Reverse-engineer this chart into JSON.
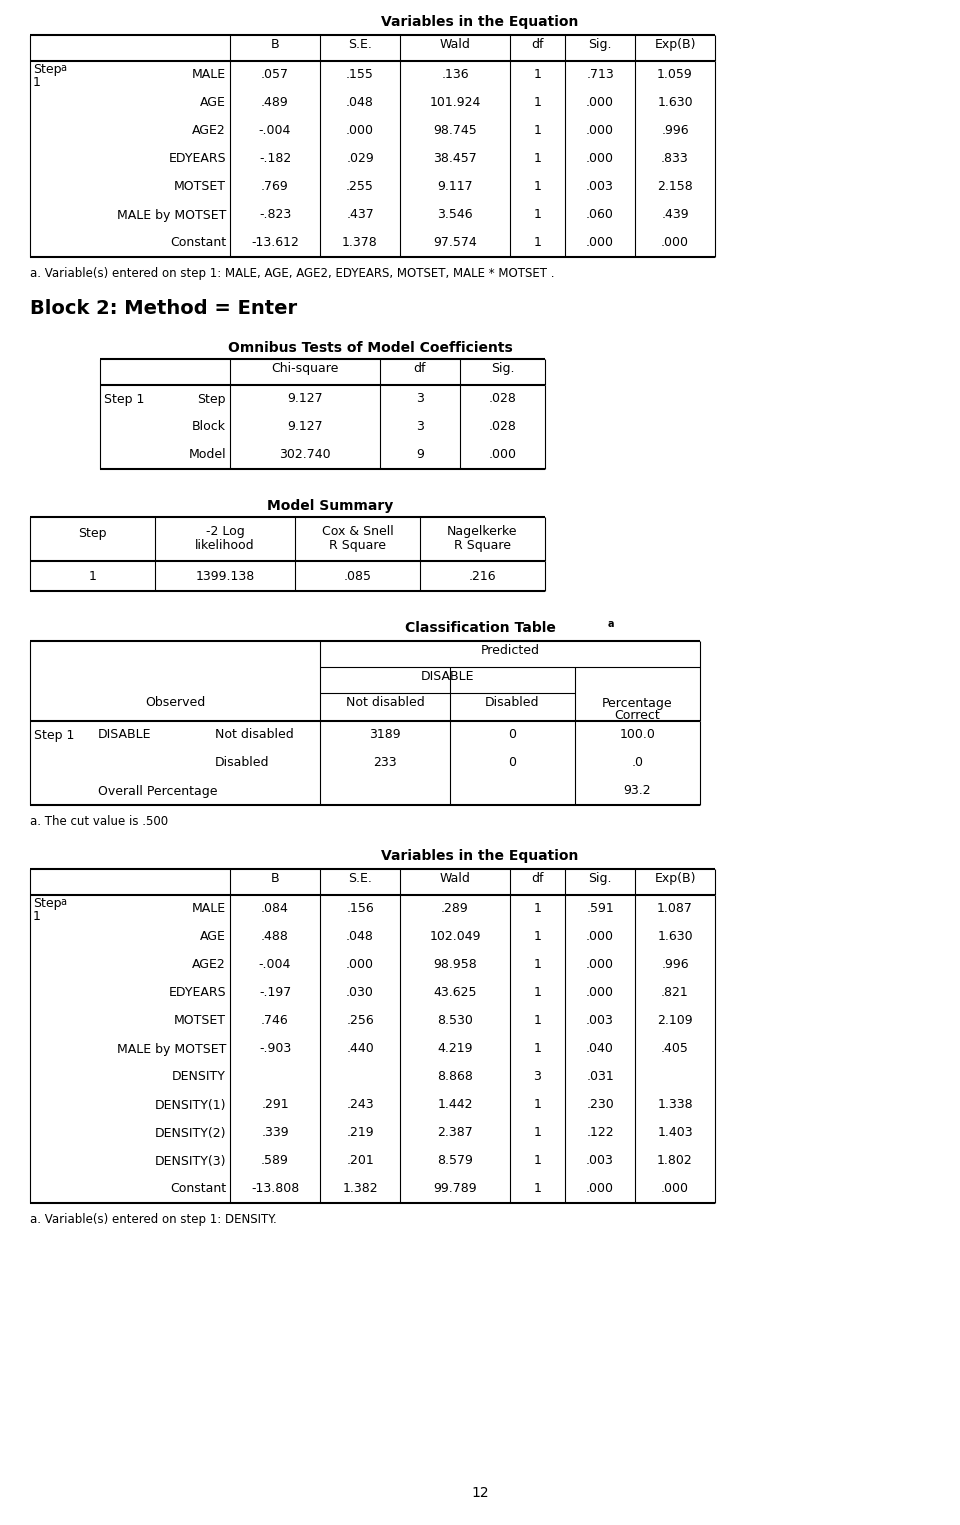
{
  "title1": "Variables in the Equation",
  "table1_col2": [
    "MALE",
    "AGE",
    "AGE2",
    "EDYEARS",
    "MOTSET",
    "MALE by MOTSET",
    "Constant"
  ],
  "table1_B": [
    ".057",
    ".489",
    "-.004",
    "-.182",
    ".769",
    "-.823",
    "-13.612"
  ],
  "table1_SE": [
    ".155",
    ".048",
    ".000",
    ".029",
    ".255",
    ".437",
    "1.378"
  ],
  "table1_Wald": [
    ".136",
    "101.924",
    "98.745",
    "38.457",
    "9.117",
    "3.546",
    "97.574"
  ],
  "table1_df": [
    "1",
    "1",
    "1",
    "1",
    "1",
    "1",
    "1"
  ],
  "table1_Sig": [
    ".713",
    ".000",
    ".000",
    ".000",
    ".003",
    ".060",
    ".000"
  ],
  "table1_ExpB": [
    "1.059",
    "1.630",
    ".996",
    ".833",
    "2.158",
    ".439",
    ".000"
  ],
  "footnote1": "a. Variable(s) entered on step 1: MALE, AGE, AGE2, EDYEARS, MOTSET, MALE * MOTSET .",
  "block2_title": "Block 2: Method = Enter",
  "omnibus_title": "Omnibus Tests of Model Coefficients",
  "omnibus_rows": [
    [
      "Step 1",
      "Step",
      "9.127",
      "3",
      ".028"
    ],
    [
      "",
      "Block",
      "9.127",
      "3",
      ".028"
    ],
    [
      "",
      "Model",
      "302.740",
      "9",
      ".000"
    ]
  ],
  "model_summary_title": "Model Summary",
  "model_summary_row": [
    "1",
    "1399.138",
    ".085",
    ".216"
  ],
  "class_table_title": "Classification Table",
  "class_rows_data": [
    [
      "Step 1",
      "DISABLE",
      "Not disabled",
      "3189",
      "0",
      "100.0"
    ],
    [
      "",
      "",
      "Disabled",
      "233",
      "0",
      ".0"
    ],
    [
      "",
      "Overall Percentage",
      "",
      "",
      "",
      "93.2"
    ]
  ],
  "footnote2": "a. The cut value is .500",
  "title2": "Variables in the Equation",
  "table2_col2": [
    "MALE",
    "AGE",
    "AGE2",
    "EDYEARS",
    "MOTSET",
    "MALE by MOTSET",
    "DENSITY",
    "DENSITY(1)",
    "DENSITY(2)",
    "DENSITY(3)",
    "Constant"
  ],
  "table2_B": [
    ".084",
    ".488",
    "-.004",
    "-.197",
    ".746",
    "-.903",
    "",
    ".291",
    ".339",
    ".589",
    "-13.808"
  ],
  "table2_SE": [
    ".156",
    ".048",
    ".000",
    ".030",
    ".256",
    ".440",
    "",
    ".243",
    ".219",
    ".201",
    "1.382"
  ],
  "table2_Wald": [
    ".289",
    "102.049",
    "98.958",
    "43.625",
    "8.530",
    "4.219",
    "8.868",
    "1.442",
    "2.387",
    "8.579",
    "99.789"
  ],
  "table2_df": [
    "1",
    "1",
    "1",
    "1",
    "1",
    "1",
    "3",
    "1",
    "1",
    "1",
    "1"
  ],
  "table2_Sig": [
    ".591",
    ".000",
    ".000",
    ".000",
    ".003",
    ".040",
    ".031",
    ".230",
    ".122",
    ".003",
    ".000"
  ],
  "table2_ExpB": [
    "1.087",
    "1.630",
    ".996",
    ".821",
    "2.109",
    ".405",
    "",
    "1.338",
    "1.403",
    "1.802",
    ".000"
  ],
  "footnote3": "a. Variable(s) entered on step 1: DENSITY.",
  "page_num": "12"
}
